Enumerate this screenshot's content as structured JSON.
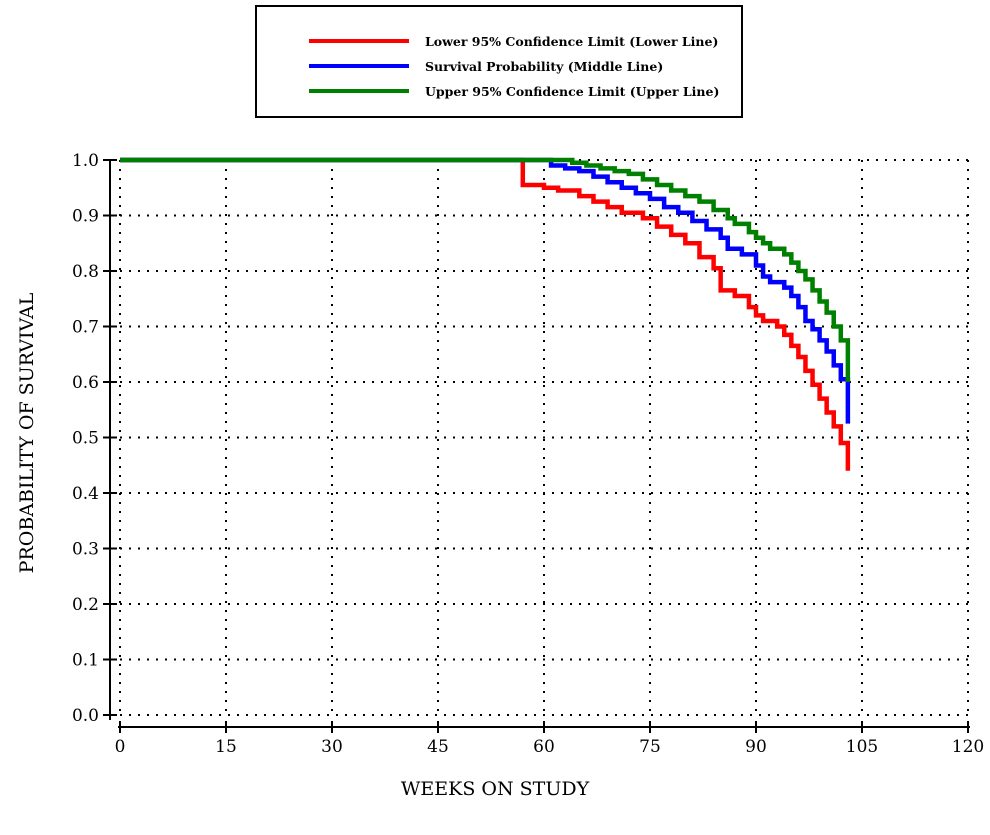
{
  "chart_data": {
    "type": "line",
    "step": true,
    "xlabel": "WEEKS ON STUDY",
    "ylabel": "PROBABILITY OF SURVIVAL",
    "xlim": [
      0,
      120
    ],
    "ylim": [
      0,
      1.0
    ],
    "xticks": [
      "0",
      "15",
      "30",
      "45",
      "60",
      "75",
      "90",
      "105",
      "120"
    ],
    "yticks": [
      "0.0",
      "0.1",
      "0.2",
      "0.3",
      "0.4",
      "0.5",
      "0.6",
      "0.7",
      "0.8",
      "0.9",
      "1.0"
    ],
    "grid": "dotted",
    "legend_position": "top-center",
    "series": [
      {
        "name": "Lower 95% Confidence Limit (Lower Line)",
        "color": "#ff0000",
        "points": [
          [
            0,
            1.0
          ],
          [
            57,
            1.0
          ],
          [
            57,
            0.955
          ],
          [
            60,
            0.95
          ],
          [
            62,
            0.945
          ],
          [
            65,
            0.935
          ],
          [
            67,
            0.925
          ],
          [
            69,
            0.915
          ],
          [
            71,
            0.905
          ],
          [
            74,
            0.895
          ],
          [
            76,
            0.88
          ],
          [
            78,
            0.865
          ],
          [
            80,
            0.85
          ],
          [
            82,
            0.825
          ],
          [
            84,
            0.805
          ],
          [
            85,
            0.765
          ],
          [
            87,
            0.755
          ],
          [
            89,
            0.735
          ],
          [
            90,
            0.72
          ],
          [
            91,
            0.71
          ],
          [
            93,
            0.7
          ],
          [
            94,
            0.685
          ],
          [
            95,
            0.665
          ],
          [
            96,
            0.645
          ],
          [
            97,
            0.62
          ],
          [
            98,
            0.595
          ],
          [
            99,
            0.57
          ],
          [
            100,
            0.545
          ],
          [
            101,
            0.52
          ],
          [
            102,
            0.49
          ],
          [
            103,
            0.465
          ],
          [
            103,
            0.44
          ]
        ]
      },
      {
        "name": "Survival Probability (Middle Line)",
        "color": "#0000ff",
        "points": [
          [
            0,
            1.0
          ],
          [
            61,
            1.0
          ],
          [
            61,
            0.99
          ],
          [
            63,
            0.985
          ],
          [
            65,
            0.98
          ],
          [
            67,
            0.97
          ],
          [
            69,
            0.96
          ],
          [
            71,
            0.95
          ],
          [
            73,
            0.94
          ],
          [
            75,
            0.93
          ],
          [
            77,
            0.915
          ],
          [
            79,
            0.905
          ],
          [
            81,
            0.89
          ],
          [
            83,
            0.875
          ],
          [
            85,
            0.86
          ],
          [
            86,
            0.84
          ],
          [
            88,
            0.83
          ],
          [
            90,
            0.81
          ],
          [
            91,
            0.79
          ],
          [
            92,
            0.78
          ],
          [
            94,
            0.77
          ],
          [
            95,
            0.755
          ],
          [
            96,
            0.735
          ],
          [
            97,
            0.71
          ],
          [
            98,
            0.695
          ],
          [
            99,
            0.675
          ],
          [
            100,
            0.655
          ],
          [
            101,
            0.63
          ],
          [
            102,
            0.605
          ],
          [
            103,
            0.575
          ],
          [
            103,
            0.525
          ]
        ]
      },
      {
        "name": "Upper 95% Confidence Limit (Upper Line)",
        "color": "#008000",
        "points": [
          [
            0,
            1.0
          ],
          [
            62,
            1.0
          ],
          [
            64,
            0.995
          ],
          [
            66,
            0.99
          ],
          [
            68,
            0.985
          ],
          [
            70,
            0.98
          ],
          [
            72,
            0.975
          ],
          [
            74,
            0.965
          ],
          [
            76,
            0.955
          ],
          [
            78,
            0.945
          ],
          [
            80,
            0.935
          ],
          [
            82,
            0.925
          ],
          [
            84,
            0.91
          ],
          [
            86,
            0.895
          ],
          [
            87,
            0.885
          ],
          [
            89,
            0.87
          ],
          [
            90,
            0.86
          ],
          [
            91,
            0.85
          ],
          [
            92,
            0.84
          ],
          [
            94,
            0.83
          ],
          [
            95,
            0.815
          ],
          [
            96,
            0.8
          ],
          [
            97,
            0.785
          ],
          [
            98,
            0.765
          ],
          [
            99,
            0.745
          ],
          [
            100,
            0.725
          ],
          [
            101,
            0.7
          ],
          [
            102,
            0.675
          ],
          [
            103,
            0.645
          ],
          [
            103,
            0.6
          ]
        ]
      }
    ]
  }
}
